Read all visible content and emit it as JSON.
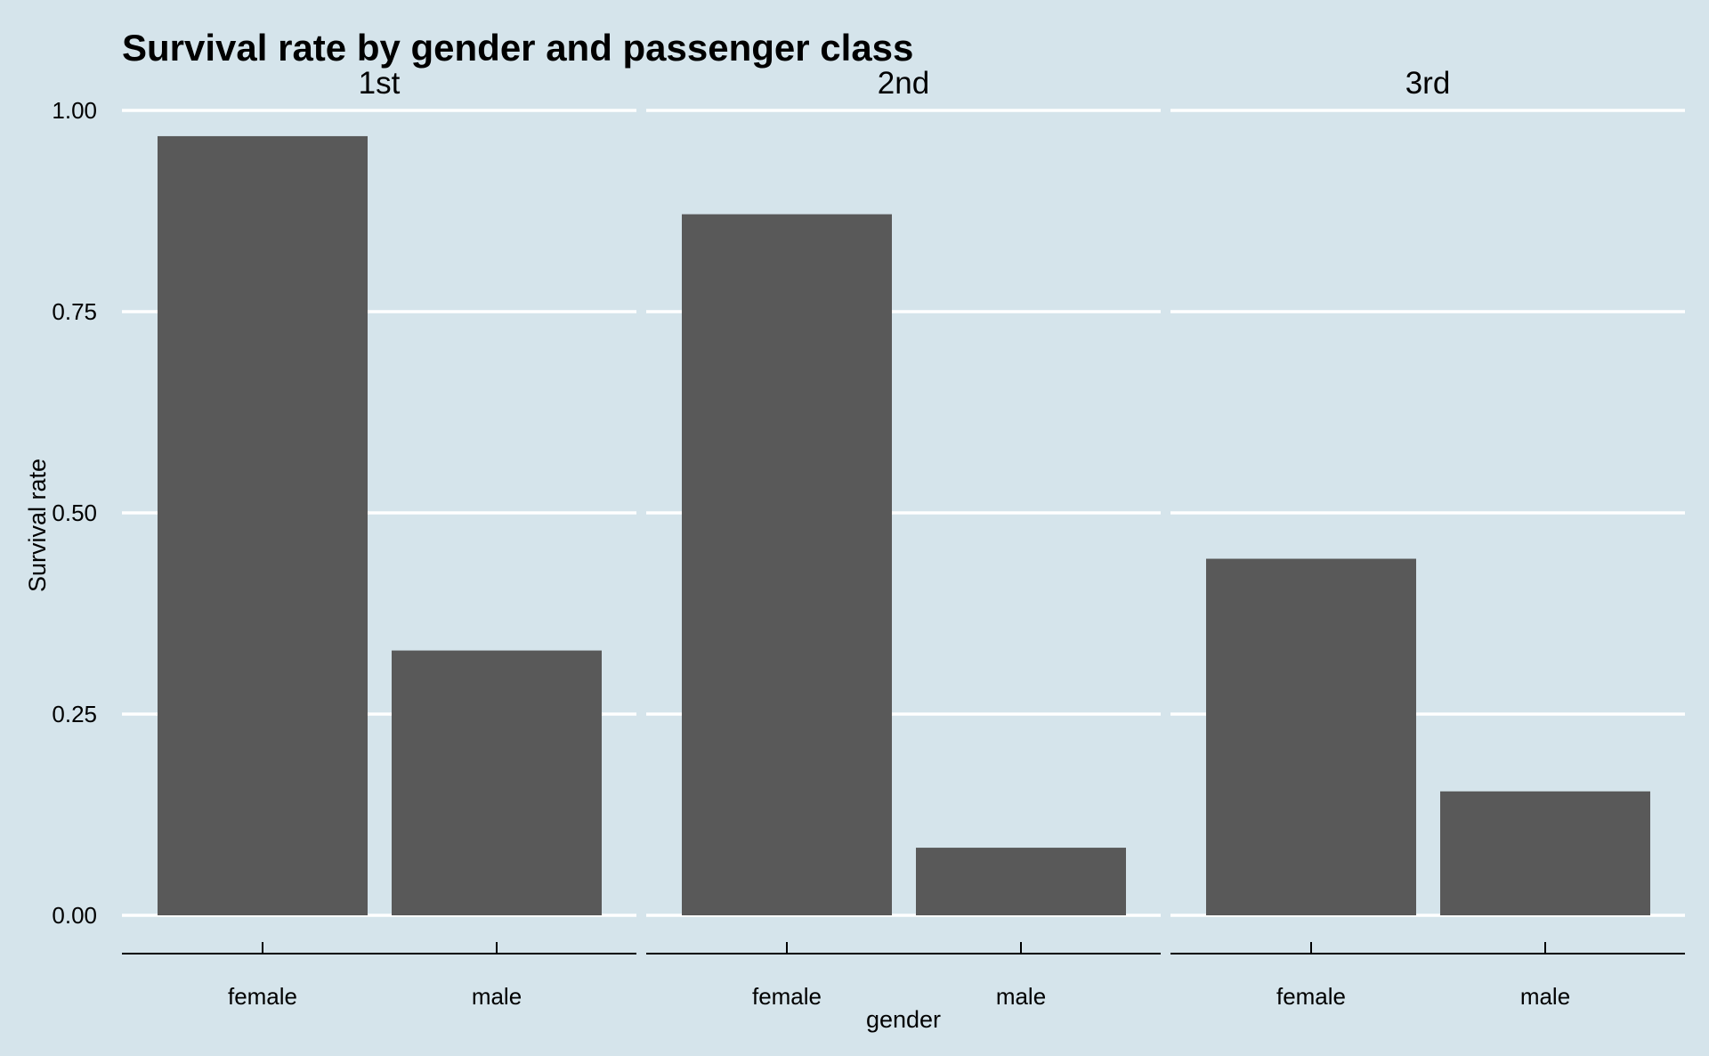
{
  "chart_data": {
    "type": "bar",
    "title": "Survival rate by gender and passenger class",
    "xlabel": "gender",
    "ylabel": "Survival rate",
    "ylim": [
      0,
      1
    ],
    "yticks": [
      "0.00",
      "0.25",
      "0.50",
      "0.75",
      "1.00"
    ],
    "ytick_values": [
      0,
      0.25,
      0.5,
      0.75,
      1.0
    ],
    "facets": [
      {
        "label": "1st",
        "categories": [
          "female",
          "male"
        ],
        "values": [
          0.968,
          0.329
        ]
      },
      {
        "label": "2nd",
        "categories": [
          "female",
          "male"
        ],
        "values": [
          0.871,
          0.084
        ]
      },
      {
        "label": "3rd",
        "categories": [
          "female",
          "male"
        ],
        "values": [
          0.443,
          0.154
        ]
      }
    ],
    "bar_color": "#595959",
    "background_color": "#d5e4eb",
    "grid": true,
    "grid_color": "#ffffff",
    "legend": "none"
  }
}
